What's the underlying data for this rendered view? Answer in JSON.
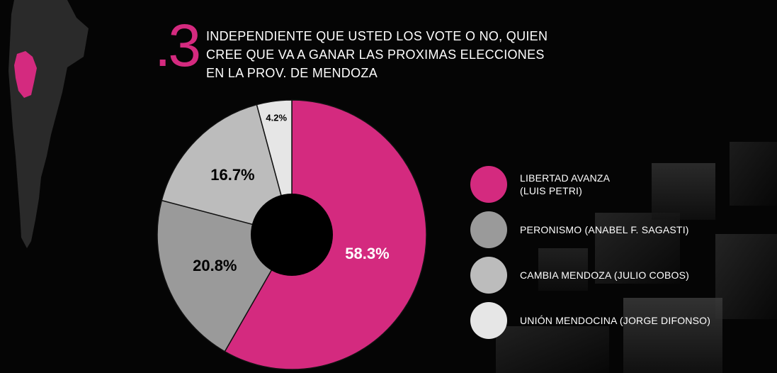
{
  "question": {
    "number": ".3",
    "text": "INDEPENDIENTE QUE USTED LOS VOTE O NO, QUIEN\nCREE QUE VA A GANAR LAS PROXIMAS ELECCIONES\nEN LA PROV. DE MENDOZA"
  },
  "chart_data": {
    "type": "pie",
    "donut": true,
    "categories": [
      "LIBERTAD AVANZA\n(LUIS PETRI)",
      "PERONISMO (ANABEL F. SAGASTI)",
      "CAMBIA MENDOZA (JULIO COBOS)",
      "UNIÓN MENDOCINA (JORGE DIFONSO)"
    ],
    "values": [
      58.3,
      20.8,
      16.7,
      4.2
    ],
    "labels": [
      "58.3%",
      "20.8%",
      "16.7%",
      "4.2%"
    ],
    "colors": [
      "#d42a7f",
      "#9a9a9a",
      "#bcbcbc",
      "#e6e6e6"
    ],
    "label_colors": [
      "#ffffff",
      "#000000",
      "#000000",
      "#000000"
    ],
    "legend_position": "right"
  },
  "colors": {
    "background": "#050505",
    "accent": "#d42a7f",
    "map_fill": "#2a2a2a"
  }
}
